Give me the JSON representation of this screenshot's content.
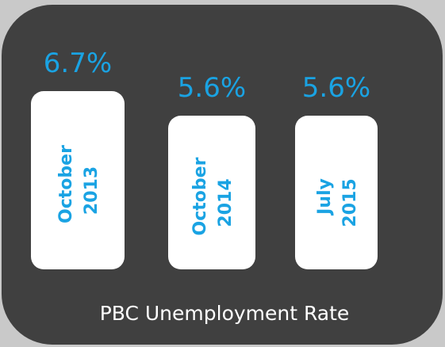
{
  "chart_data": {
    "type": "bar",
    "title": "PBC Unemployment Rate",
    "categories": [
      [
        "October",
        "2013"
      ],
      [
        "October",
        "2014"
      ],
      [
        "July",
        "2015"
      ]
    ],
    "values": [
      6.7,
      5.6,
      5.6
    ],
    "value_labels": [
      "6.7%",
      "5.6%",
      "5.6%"
    ],
    "xlabel": "",
    "ylabel": "",
    "grid": false,
    "legend": "none"
  },
  "colors": {
    "background": "#c9c9c9",
    "card": "#404040",
    "bar": "#ffffff",
    "accent": "#1aa3e3",
    "title": "#ffffff"
  }
}
